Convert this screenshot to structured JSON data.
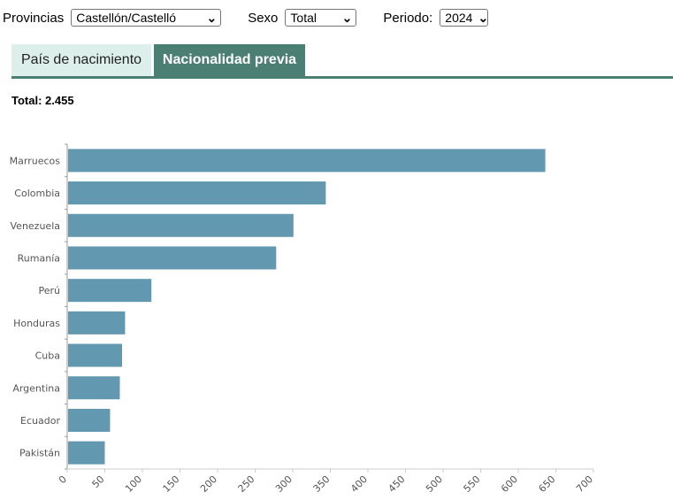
{
  "filters": {
    "provincias": {
      "label": "Provincias",
      "value": "Castellón/Castelló"
    },
    "sexo": {
      "label": "Sexo",
      "value": "Total"
    },
    "periodo": {
      "label": "Periodo:",
      "value": "2024"
    }
  },
  "tabs": [
    {
      "label": "País de nacimiento",
      "active": false
    },
    {
      "label": "Nacionalidad previa",
      "active": true
    }
  ],
  "total": {
    "label": "Total:",
    "value": "2.455"
  },
  "colors": {
    "bar": "#6399b0",
    "tab_active": "#4b7f74",
    "tab_inactive": "#dcefeb"
  },
  "chart_data": {
    "type": "bar",
    "orientation": "horizontal",
    "categories": [
      "Marruecos",
      "Colombia",
      "Venezuela",
      "Rumanía",
      "Perú",
      "Honduras",
      "Cuba",
      "Argentina",
      "Ecuador",
      "Pakistán"
    ],
    "values": [
      636,
      344,
      301,
      278,
      112,
      77,
      73,
      70,
      57,
      50
    ],
    "xlim": [
      0,
      700
    ],
    "xticks": [
      0,
      50,
      100,
      150,
      200,
      250,
      300,
      350,
      400,
      450,
      500,
      550,
      600,
      650,
      700
    ],
    "grid": false,
    "title": "",
    "xlabel": "",
    "ylabel": ""
  }
}
